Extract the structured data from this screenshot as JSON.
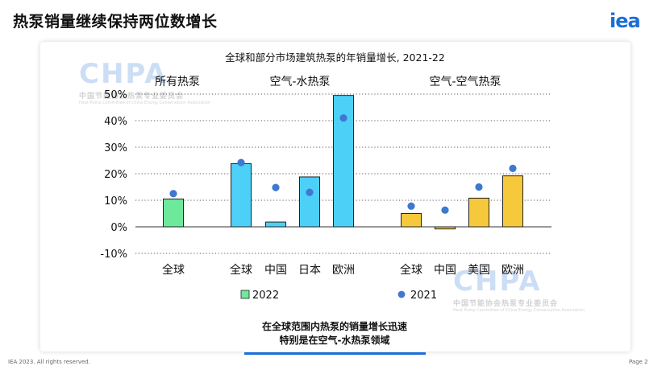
{
  "header": {
    "title": "热泵销量继续保持两位数增长",
    "logo": "iea"
  },
  "watermark": {
    "logo_text": "CHPA",
    "org_cn": "中国节能协会热泵专业委员会",
    "org_en": "Heat Pump Committee of China Energy Conservation Association"
  },
  "callout": {
    "line1": "在全球范围内热泵的销量增长迅速",
    "line2": "特别是在空气-水热泵领域"
  },
  "footer": {
    "left": "IEA 2023. All rights reserved.",
    "right": "Page 2"
  },
  "chart_data": {
    "type": "bar",
    "title": "全球和部分市场建筑热泵的年销量增长, 2021-22",
    "groups": [
      {
        "label": "所有热泵",
        "categories": [
          "全球"
        ],
        "color": "#6ee89a"
      },
      {
        "label": "空气-水热泵",
        "categories": [
          "全球",
          "中国",
          "日本",
          "欧洲"
        ],
        "color": "#4dd0f7"
      },
      {
        "label": "空气-空气热泵",
        "categories": [
          "全球",
          "中国",
          "美国",
          "欧洲"
        ],
        "color": "#f6c93c"
      }
    ],
    "series": [
      {
        "name": "2022",
        "kind": "bar",
        "values": [
          10.5,
          23.8,
          1.8,
          18.8,
          49.5,
          5.0,
          -0.8,
          10.8,
          19.2
        ]
      },
      {
        "name": "2021",
        "kind": "marker",
        "values": [
          12.5,
          24.2,
          14.8,
          13.0,
          41.0,
          7.8,
          6.3,
          15.0,
          22.0
        ]
      }
    ],
    "y_ticks": [
      "50%",
      "40%",
      "30%",
      "20%",
      "10%",
      "0%",
      "-10%"
    ],
    "ylim": [
      -10,
      50
    ],
    "legend_position": "bottom",
    "marker_color": "#3f78d0",
    "grid": true
  }
}
